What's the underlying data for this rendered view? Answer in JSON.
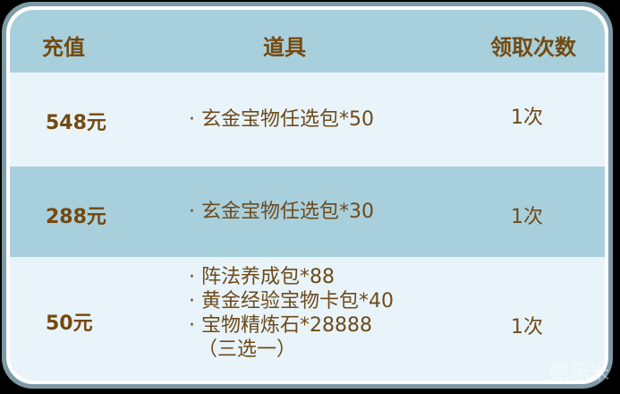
{
  "header": {
    "col_recharge": "充值",
    "col_items": "道具",
    "col_times": "领取次数"
  },
  "rows": [
    {
      "amount": "548元",
      "items": [
        "· 玄金宝物任选包*50"
      ],
      "times": "1次"
    },
    {
      "amount": "288元",
      "items": [
        "· 玄金宝物任选包*30"
      ],
      "times": "1次"
    },
    {
      "amount": "50元",
      "items": [
        "· 阵法养成包*88",
        "· 黄金经验宝物卡包*40",
        "· 宝物精炼石*28888",
        "（三选一）"
      ],
      "times": "1次"
    }
  ],
  "watermark": "酷乐米",
  "colors": {
    "text": "#74490f",
    "header_bg": "#a8cfdc",
    "row_light": "#e8f4f9",
    "border": "#7d9aa6"
  }
}
